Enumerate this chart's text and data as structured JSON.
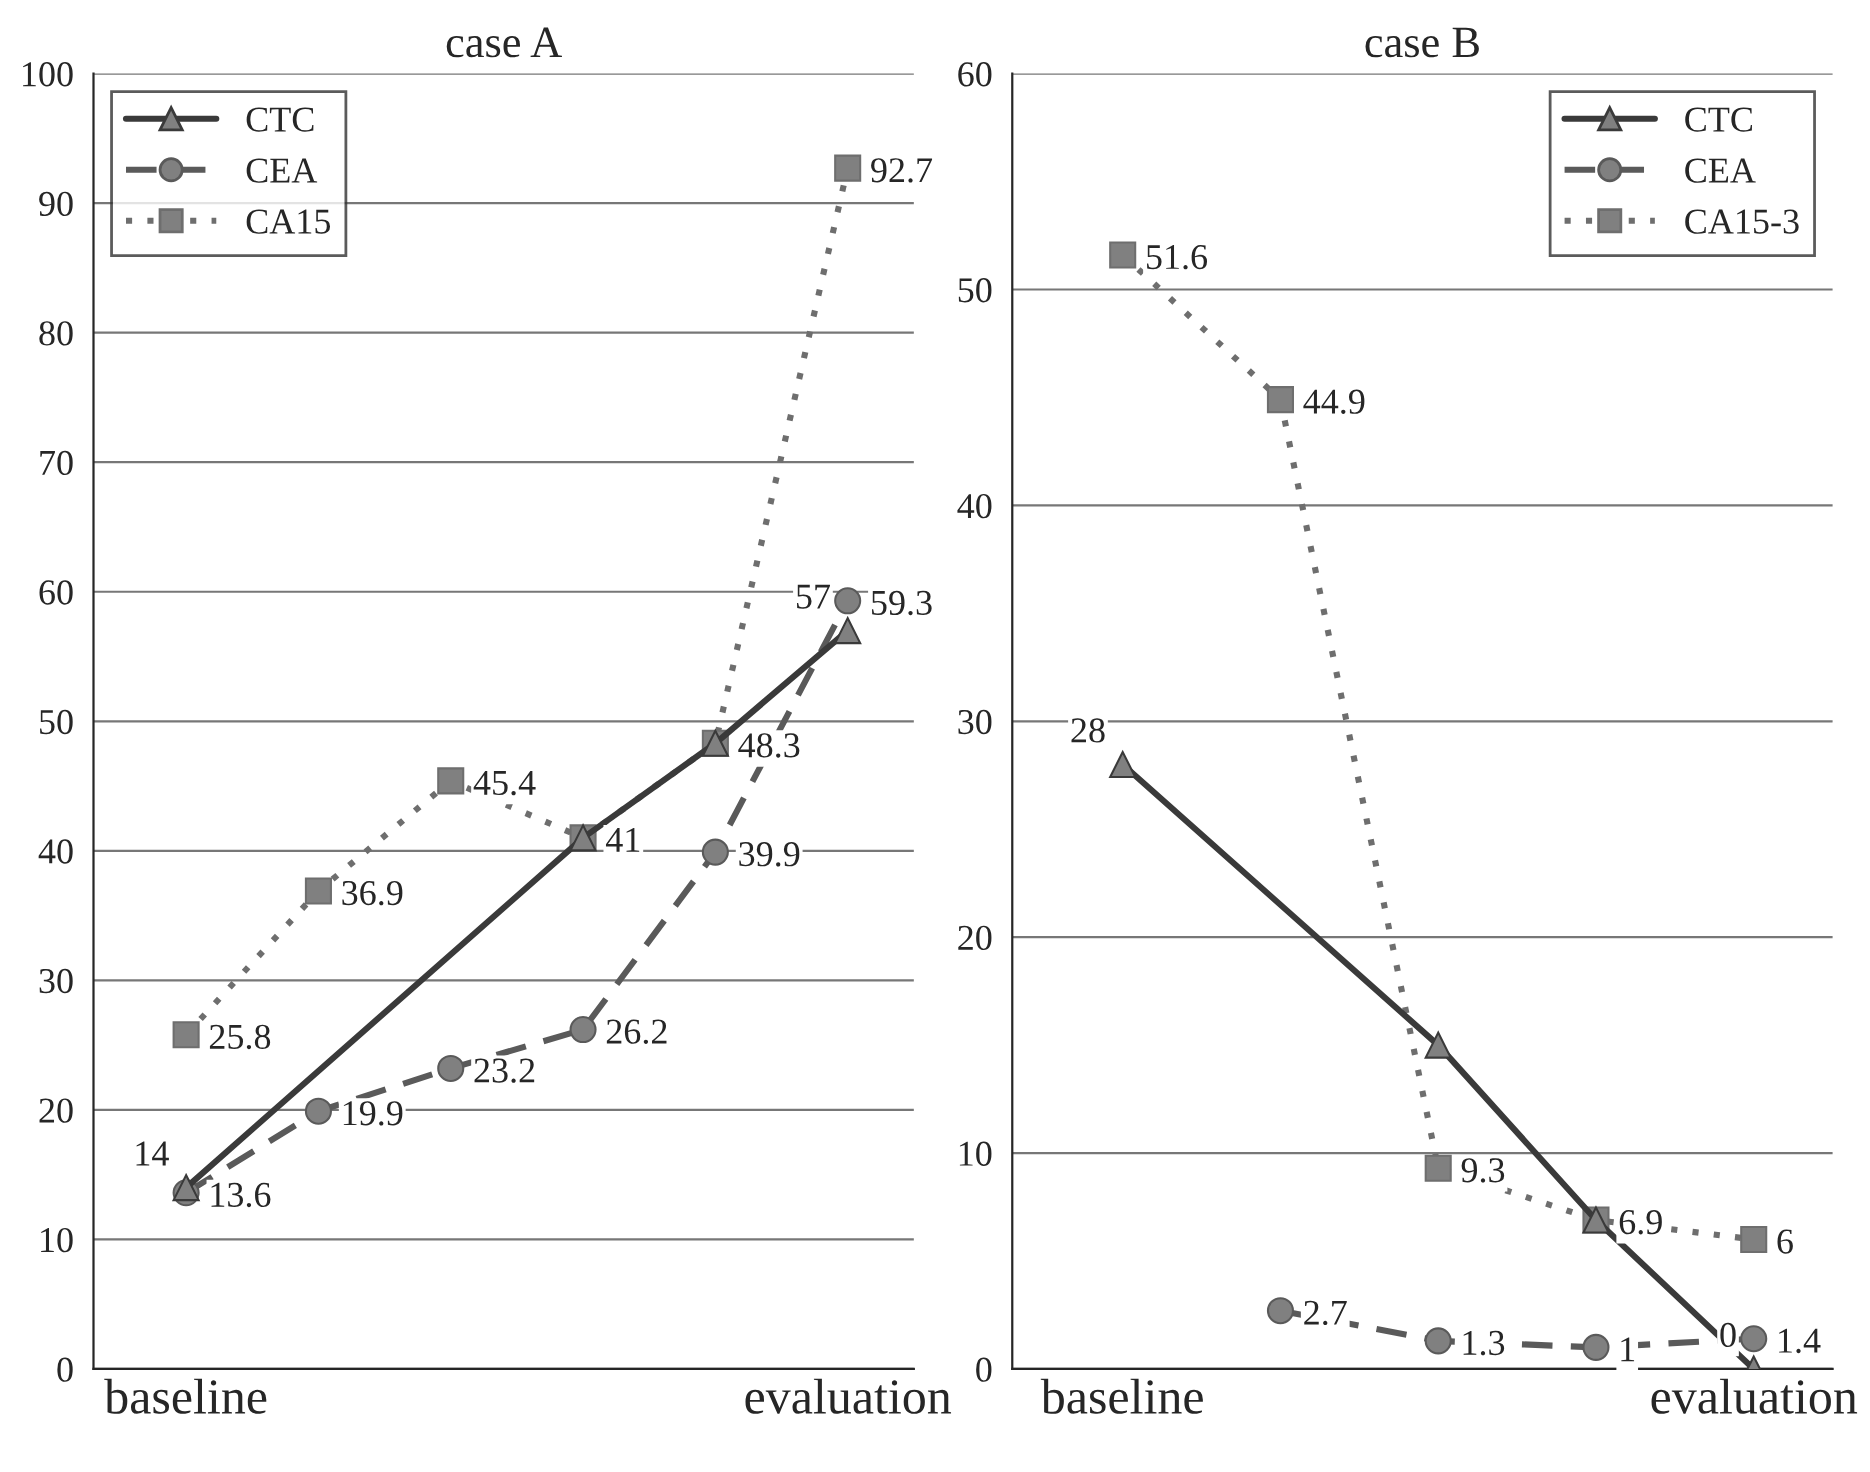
{
  "chart_data": [
    {
      "type": "line",
      "title": "case A",
      "categories": [
        "baseline",
        null,
        null,
        null,
        null,
        "evaluation"
      ],
      "ylim": [
        0,
        100
      ],
      "yticks": [
        0,
        10,
        20,
        30,
        40,
        50,
        60,
        70,
        80,
        90,
        100
      ],
      "grid": "y",
      "legend": "top left",
      "series": [
        {
          "name": "CTC",
          "color": "#3a3a3a",
          "marker": "triangle",
          "line_style": "solid",
          "values": [
            14,
            null,
            null,
            41,
            48.3,
            57
          ],
          "value_labels": [
            "14",
            null,
            null,
            null,
            null,
            "57"
          ]
        },
        {
          "name": "CEA",
          "color": "#5a5a5a",
          "marker": "circle",
          "line_style": "dashed",
          "values": [
            13.6,
            19.9,
            23.2,
            26.2,
            39.9,
            59.3
          ],
          "value_labels": [
            "13.6",
            "19.9",
            "23.2",
            "26.2",
            "39.9",
            "59.3"
          ]
        },
        {
          "name": "CA15",
          "color": "#6e6e6e",
          "marker": "square",
          "line_style": "dotted",
          "values": [
            25.8,
            36.9,
            45.4,
            41,
            48.3,
            92.7
          ],
          "value_labels": [
            "25.8",
            "36.9",
            "45.4",
            "41",
            "48.3",
            "92.7"
          ]
        }
      ]
    },
    {
      "type": "line",
      "title": "case B",
      "categories": [
        "baseline",
        null,
        null,
        null,
        "evaluation"
      ],
      "ylim": [
        0,
        60
      ],
      "yticks": [
        0,
        10,
        20,
        30,
        40,
        50,
        60
      ],
      "grid": "y",
      "legend": "top right",
      "series": [
        {
          "name": "CTC",
          "color": "#3a3a3a",
          "marker": "triangle",
          "line_style": "solid",
          "values": [
            28,
            null,
            15,
            6.9,
            0
          ],
          "value_labels": [
            "28",
            null,
            null,
            null,
            "0"
          ]
        },
        {
          "name": "CEA",
          "color": "#5a5a5a",
          "marker": "circle",
          "line_style": "dashed",
          "values": [
            null,
            2.7,
            1.3,
            1,
            1.4
          ],
          "value_labels": [
            null,
            "2.7",
            "1.3",
            "1",
            "1.4"
          ]
        },
        {
          "name": "CA15-3",
          "color": "#6e6e6e",
          "marker": "square",
          "line_style": "dotted",
          "values": [
            51.6,
            44.9,
            9.3,
            6.9,
            6
          ],
          "value_labels": [
            "51.6",
            "44.9",
            "9.3",
            "6.9",
            "6"
          ]
        }
      ]
    }
  ]
}
